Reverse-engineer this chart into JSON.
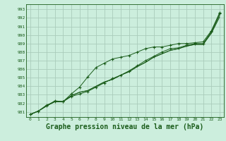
{
  "background_color": "#cceedd",
  "grid_color": "#aaccbb",
  "line_color": "#1a5c1a",
  "xlabel": "Graphe pression niveau de la mer (hPa)",
  "xlabel_fontsize": 7.0,
  "xlim": [
    -0.5,
    23.5
  ],
  "ylim": [
    980.4,
    993.6
  ],
  "yticks": [
    981,
    982,
    983,
    984,
    985,
    986,
    987,
    988,
    989,
    990,
    991,
    992,
    993
  ],
  "xticks": [
    0,
    1,
    2,
    3,
    4,
    5,
    6,
    7,
    8,
    9,
    10,
    11,
    12,
    13,
    14,
    15,
    16,
    17,
    18,
    19,
    20,
    21,
    22,
    23
  ],
  "series1_x": [
    0,
    1,
    2,
    3,
    4,
    5,
    6,
    7,
    8,
    9,
    10,
    11,
    12,
    13,
    14,
    15,
    16,
    17,
    18,
    19,
    20,
    21,
    22,
    23
  ],
  "series1_y": [
    980.7,
    981.1,
    981.7,
    982.2,
    982.2,
    982.9,
    983.3,
    983.5,
    984.0,
    984.5,
    984.8,
    985.3,
    985.7,
    986.3,
    986.8,
    987.4,
    987.8,
    988.2,
    988.4,
    988.7,
    988.9,
    988.9,
    990.3,
    992.3
  ],
  "series2_x": [
    0,
    1,
    2,
    3,
    4,
    5,
    6,
    7,
    8,
    9,
    10,
    11,
    12,
    13,
    14,
    15,
    16,
    17,
    18,
    19,
    20,
    21,
    22,
    23
  ],
  "series2_y": [
    980.7,
    981.1,
    981.7,
    982.2,
    982.2,
    982.9,
    983.3,
    983.5,
    984.0,
    984.5,
    984.8,
    985.3,
    985.7,
    986.3,
    986.8,
    987.4,
    987.8,
    988.2,
    988.4,
    988.7,
    988.9,
    988.9,
    990.2,
    992.1
  ],
  "series3_x": [
    0,
    1,
    2,
    3,
    4,
    5,
    6,
    7,
    8,
    9,
    10,
    11,
    12,
    13,
    14,
    15,
    16,
    17,
    18,
    19,
    20,
    21,
    22,
    23
  ],
  "series3_y": [
    980.7,
    981.1,
    981.7,
    982.3,
    982.2,
    983.1,
    983.9,
    985.1,
    986.2,
    986.7,
    987.2,
    987.4,
    987.6,
    988.0,
    988.4,
    988.6,
    988.6,
    988.8,
    989.0,
    989.0,
    989.1,
    989.2,
    990.5,
    992.6
  ],
  "series4_x": [
    0,
    1,
    2,
    3,
    4,
    5,
    6,
    7,
    8,
    9,
    10,
    11,
    12,
    13,
    14,
    15,
    16,
    17,
    18,
    19,
    20,
    21,
    22,
    23
  ],
  "series4_y": [
    980.7,
    981.1,
    981.8,
    982.2,
    982.2,
    982.8,
    983.1,
    983.4,
    983.9,
    984.4,
    984.9,
    985.3,
    985.8,
    986.4,
    987.0,
    987.5,
    988.0,
    988.4,
    988.5,
    988.8,
    989.0,
    989.0,
    990.4,
    992.5
  ]
}
